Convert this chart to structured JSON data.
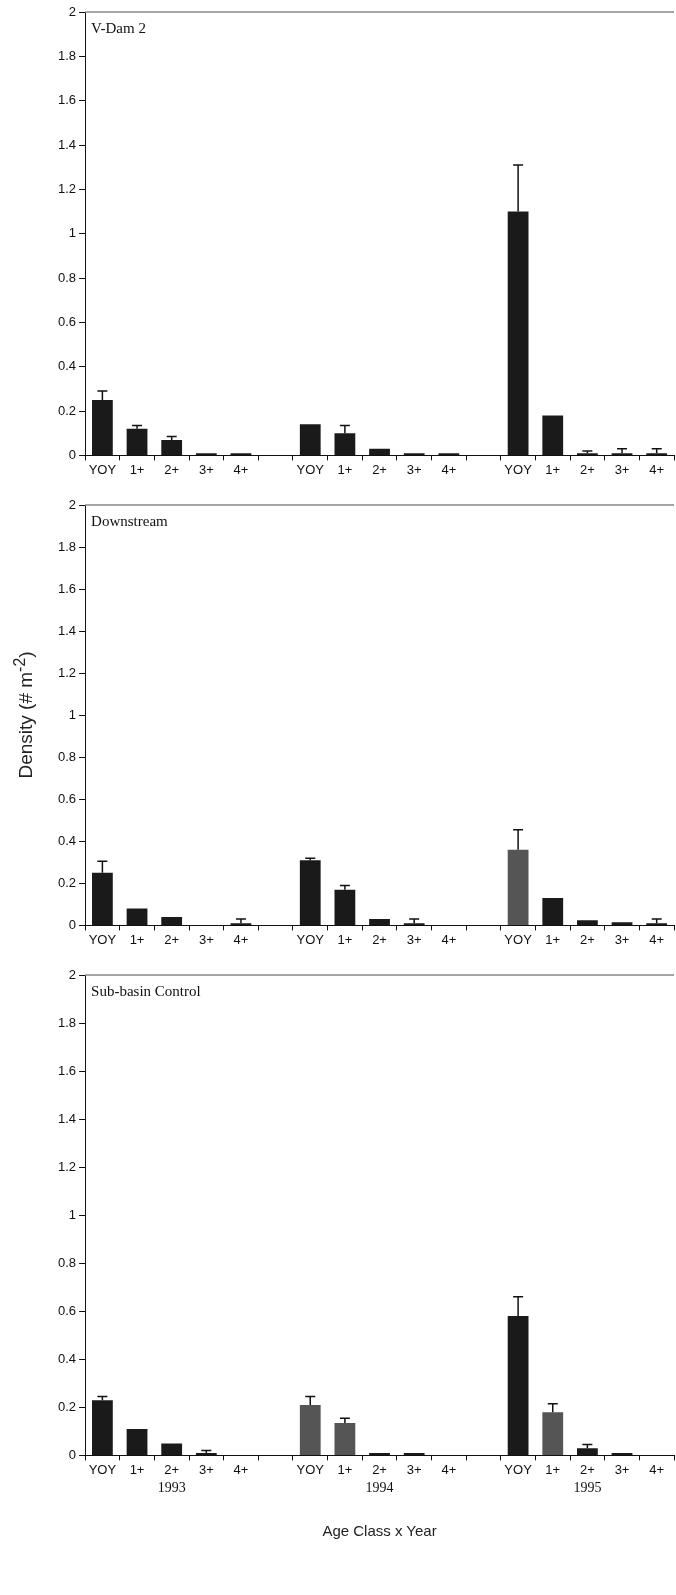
{
  "chart_data": [
    {
      "type": "bar",
      "title": "V-Dam 2",
      "categories": [
        "YOY",
        "1+",
        "2+",
        "3+",
        "4+",
        null,
        "YOY",
        "1+",
        "2+",
        "3+",
        "4+",
        null,
        "YOY",
        "1+",
        "2+",
        "3+",
        "4+"
      ],
      "values": [
        0.25,
        0.12,
        0.07,
        0.01,
        0.01,
        null,
        0.14,
        0.1,
        0.03,
        0.01,
        0.01,
        null,
        1.1,
        0.18,
        0.01,
        0.01,
        0.01
      ],
      "errors": [
        [
          0.25,
          0.29
        ],
        [
          0.12,
          0.135
        ],
        [
          0.07,
          0.085
        ],
        null,
        null,
        null,
        null,
        [
          0.1,
          0.135
        ],
        null,
        null,
        null,
        null,
        [
          1.1,
          1.31
        ],
        null,
        [
          0.01,
          0.02
        ],
        [
          0.01,
          0.03
        ],
        [
          0.01,
          0.03
        ]
      ],
      "colors": [
        "#1a1a1a",
        "#1a1a1a",
        "#1a1a1a",
        "#1a1a1a",
        "#1a1a1a",
        "#1a1a1a",
        "#1a1a1a",
        "#1a1a1a",
        "#1a1a1a",
        "#1a1a1a",
        "#1a1a1a",
        "#1a1a1a",
        "#1a1a1a",
        "#1a1a1a",
        "#1a1a1a",
        "#1a1a1a",
        "#1a1a1a"
      ],
      "ylim": [
        0,
        2
      ],
      "yticks": [
        0,
        0.2,
        0.4,
        0.6,
        0.8,
        1,
        1.2,
        1.4,
        1.6,
        1.8,
        2
      ],
      "grid": false,
      "legend": false
    },
    {
      "type": "bar",
      "title": "Downstream",
      "ylabel": "Density (# m$^{-2}$)",
      "categories": [
        "YOY",
        "1+",
        "2+",
        "3+",
        "4+",
        null,
        "YOY",
        "1+",
        "2+",
        "3+",
        "4+",
        null,
        "YOY",
        "1+",
        "2+",
        "3+",
        "4+"
      ],
      "values": [
        0.25,
        0.08,
        0.04,
        0,
        0.01,
        null,
        0.31,
        0.17,
        0.03,
        0.01,
        0,
        null,
        0.36,
        0.13,
        0.025,
        0.015,
        0.01
      ],
      "errors": [
        [
          0.25,
          0.305
        ],
        null,
        null,
        null,
        [
          0.01,
          0.03
        ],
        null,
        [
          0.31,
          0.32
        ],
        [
          0.17,
          0.19
        ],
        null,
        [
          0.01,
          0.03
        ],
        null,
        null,
        [
          0.36,
          0.455
        ],
        null,
        null,
        null,
        [
          0.01,
          0.03
        ]
      ],
      "colors": [
        "#1a1a1a",
        "#1a1a1a",
        "#1a1a1a",
        "#1a1a1a",
        "#1a1a1a",
        "#1a1a1a",
        "#1a1a1a",
        "#1a1a1a",
        "#1a1a1a",
        "#1a1a1a",
        "#1a1a1a",
        "#1a1a1a",
        "#555555",
        "#1a1a1a",
        "#1a1a1a",
        "#1a1a1a",
        "#1a1a1a"
      ],
      "ylim": [
        0,
        2
      ],
      "yticks": [
        0,
        0.2,
        0.4,
        0.6,
        0.8,
        1,
        1.2,
        1.4,
        1.6,
        1.8,
        2
      ],
      "grid": false,
      "legend": false
    },
    {
      "type": "bar",
      "title": "Sub-basin Control",
      "xlabel": "Age Class x Year",
      "annotations": [
        "1993",
        "1994",
        "1995"
      ],
      "categories": [
        "YOY",
        "1+",
        "2+",
        "3+",
        "4+",
        null,
        "YOY",
        "1+",
        "2+",
        "3+",
        "4+",
        null,
        "YOY",
        "1+",
        "2+",
        "3+",
        "4+"
      ],
      "values": [
        0.23,
        0.11,
        0.05,
        0.01,
        null,
        null,
        0.21,
        0.135,
        0.01,
        0.01,
        null,
        null,
        0.58,
        0.18,
        0.03,
        0.01,
        null
      ],
      "errors": [
        [
          0.23,
          0.245
        ],
        null,
        null,
        [
          0.01,
          0.02
        ],
        null,
        null,
        [
          0.21,
          0.245
        ],
        [
          0.135,
          0.155
        ],
        null,
        null,
        null,
        null,
        [
          0.58,
          0.66
        ],
        [
          0.18,
          0.215
        ],
        [
          0.03,
          0.045
        ],
        null,
        null
      ],
      "colors": [
        "#1a1a1a",
        "#1a1a1a",
        "#1a1a1a",
        "#1a1a1a",
        "#1a1a1a",
        "#1a1a1a",
        "#555555",
        "#555555",
        "#1a1a1a",
        "#1a1a1a",
        "#1a1a1a",
        "#1a1a1a",
        "#1a1a1a",
        "#555555",
        "#1a1a1a",
        "#1a1a1a",
        "#1a1a1a"
      ],
      "ylim": [
        0,
        2
      ],
      "yticks": [
        0,
        0.2,
        0.4,
        0.6,
        0.8,
        1,
        1.2,
        1.4,
        1.6,
        1.8,
        2
      ],
      "grid": false,
      "legend": false
    }
  ]
}
